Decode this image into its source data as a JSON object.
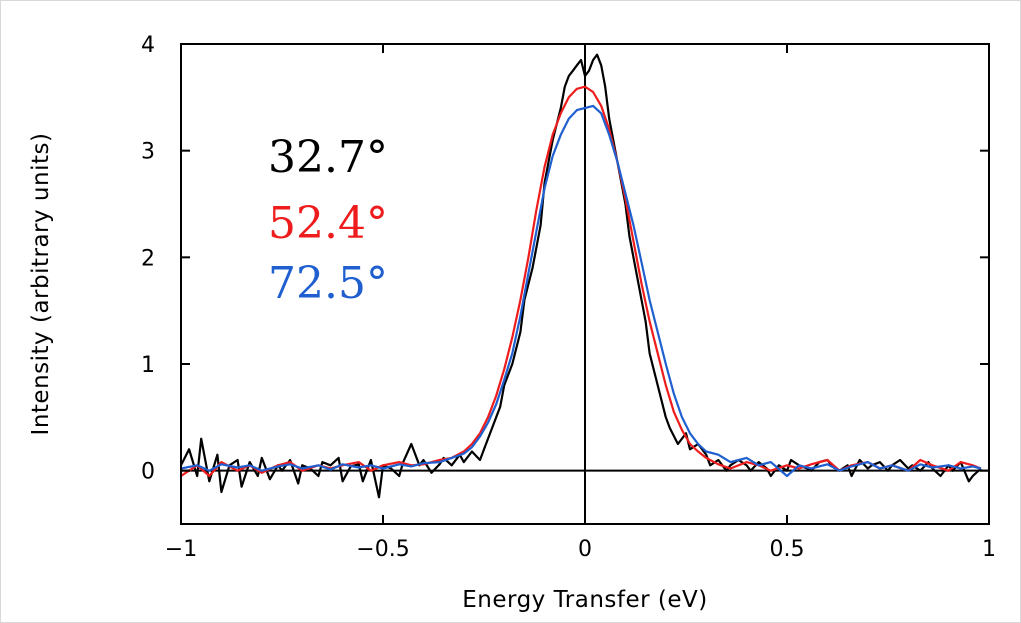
{
  "chart_data": {
    "type": "line",
    "xlabel": "Energy Transfer (eV)",
    "ylabel": "Intensity (arbitrary units)",
    "xlim": [
      -1,
      1
    ],
    "ylim": [
      -0.5,
      4
    ],
    "xticks": [
      -1,
      -0.5,
      0,
      0.5,
      1
    ],
    "xtick_labels": [
      "−1",
      "−0.5",
      "0",
      "0.5",
      "1"
    ],
    "yticks": [
      0,
      1,
      2,
      3,
      4
    ],
    "ytick_labels": [
      "0",
      "1",
      "2",
      "3",
      "4"
    ],
    "grid": false,
    "reference_lines": {
      "y": 0,
      "x": 0
    },
    "legend_placement": "upper-left",
    "series": [
      {
        "name": "32.7°",
        "color": "#000000",
        "x": [
          -1,
          -0.98,
          -0.96,
          -0.95,
          -0.93,
          -0.91,
          -0.9,
          -0.88,
          -0.86,
          -0.85,
          -0.83,
          -0.81,
          -0.8,
          -0.78,
          -0.76,
          -0.75,
          -0.73,
          -0.71,
          -0.7,
          -0.68,
          -0.66,
          -0.65,
          -0.63,
          -0.61,
          -0.6,
          -0.58,
          -0.56,
          -0.55,
          -0.53,
          -0.51,
          -0.5,
          -0.48,
          -0.46,
          -0.45,
          -0.43,
          -0.41,
          -0.4,
          -0.38,
          -0.36,
          -0.35,
          -0.33,
          -0.31,
          -0.3,
          -0.28,
          -0.26,
          -0.25,
          -0.23,
          -0.21,
          -0.2,
          -0.18,
          -0.16,
          -0.15,
          -0.13,
          -0.11,
          -0.1,
          -0.08,
          -0.06,
          -0.05,
          -0.04,
          -0.03,
          -0.02,
          -0.01,
          0,
          0.01,
          0.02,
          0.03,
          0.04,
          0.05,
          0.06,
          0.08,
          0.1,
          0.11,
          0.13,
          0.15,
          0.16,
          0.18,
          0.2,
          0.21,
          0.23,
          0.25,
          0.26,
          0.28,
          0.3,
          0.31,
          0.33,
          0.35,
          0.36,
          0.38,
          0.4,
          0.41,
          0.43,
          0.45,
          0.46,
          0.48,
          0.5,
          0.51,
          0.53,
          0.55,
          0.56,
          0.58,
          0.6,
          0.61,
          0.63,
          0.65,
          0.66,
          0.68,
          0.7,
          0.71,
          0.73,
          0.75,
          0.76,
          0.78,
          0.8,
          0.81,
          0.83,
          0.85,
          0.86,
          0.88,
          0.9,
          0.91,
          0.93,
          0.95,
          0.96,
          0.98
        ],
        "y": [
          0.05,
          0.2,
          -0.05,
          0.3,
          -0.1,
          0.15,
          -0.2,
          0.05,
          0.1,
          -0.15,
          0.08,
          -0.05,
          0.12,
          -0.08,
          0.05,
          0.0,
          0.1,
          -0.12,
          0.05,
          0.02,
          -0.05,
          0.08,
          0.05,
          0.12,
          -0.1,
          0.04,
          0.06,
          -0.1,
          0.1,
          -0.25,
          0.05,
          0.02,
          -0.05,
          0.08,
          0.25,
          0.05,
          0.1,
          -0.02,
          0.06,
          0.12,
          0.05,
          0.15,
          0.08,
          0.18,
          0.1,
          0.2,
          0.4,
          0.6,
          0.8,
          1.0,
          1.3,
          1.6,
          1.9,
          2.3,
          2.7,
          3.1,
          3.4,
          3.6,
          3.7,
          3.75,
          3.8,
          3.85,
          3.7,
          3.75,
          3.85,
          3.9,
          3.8,
          3.6,
          3.3,
          2.9,
          2.5,
          2.2,
          1.8,
          1.4,
          1.1,
          0.8,
          0.5,
          0.4,
          0.25,
          0.35,
          0.2,
          0.25,
          0.15,
          0.05,
          0.1,
          0.0,
          0.05,
          0.1,
          0.05,
          0.0,
          0.08,
          0.02,
          -0.05,
          0.05,
          0.0,
          0.1,
          0.05,
          0.02,
          0.0,
          0.08,
          0.1,
          0.05,
          0.0,
          0.05,
          -0.05,
          0.1,
          0.02,
          0.05,
          0.08,
          0.0,
          0.05,
          0.1,
          0.02,
          0.05,
          0.0,
          0.08,
          0.02,
          -0.05,
          0.05,
          0.0,
          0.08,
          -0.1,
          -0.05,
          0.02
        ]
      },
      {
        "name": "52.4°",
        "color": "#ee1c1c",
        "x": [
          -1,
          -0.96,
          -0.93,
          -0.9,
          -0.86,
          -0.83,
          -0.8,
          -0.76,
          -0.73,
          -0.7,
          -0.66,
          -0.63,
          -0.6,
          -0.56,
          -0.53,
          -0.5,
          -0.46,
          -0.43,
          -0.4,
          -0.36,
          -0.33,
          -0.3,
          -0.28,
          -0.26,
          -0.24,
          -0.22,
          -0.2,
          -0.18,
          -0.16,
          -0.14,
          -0.12,
          -0.1,
          -0.08,
          -0.06,
          -0.04,
          -0.02,
          0,
          0.02,
          0.04,
          0.06,
          0.08,
          0.1,
          0.12,
          0.14,
          0.16,
          0.18,
          0.2,
          0.22,
          0.24,
          0.26,
          0.28,
          0.3,
          0.33,
          0.36,
          0.4,
          0.43,
          0.46,
          0.5,
          0.53,
          0.56,
          0.6,
          0.63,
          0.66,
          0.7,
          0.73,
          0.76,
          0.8,
          0.83,
          0.86,
          0.9,
          0.93,
          0.96,
          0.98
        ],
        "y": [
          -0.05,
          0.05,
          -0.05,
          0.08,
          0.0,
          0.05,
          -0.02,
          0.05,
          0.08,
          0.0,
          0.05,
          0.02,
          0.05,
          0.08,
          0.0,
          0.05,
          0.08,
          0.05,
          0.06,
          0.1,
          0.12,
          0.18,
          0.25,
          0.35,
          0.5,
          0.7,
          0.95,
          1.25,
          1.6,
          2.0,
          2.45,
          2.85,
          3.15,
          3.35,
          3.5,
          3.58,
          3.6,
          3.55,
          3.42,
          3.2,
          2.9,
          2.55,
          2.15,
          1.75,
          1.4,
          1.1,
          0.8,
          0.55,
          0.38,
          0.25,
          0.18,
          0.12,
          0.06,
          0.02,
          0.08,
          0.05,
          0.0,
          0.05,
          0.02,
          0.06,
          0.1,
          0.0,
          0.05,
          0.08,
          0.02,
          0.05,
          0.0,
          0.1,
          0.05,
          0.0,
          0.08,
          0.05,
          0.02
        ]
      },
      {
        "name": "72.5°",
        "color": "#1f5fd0",
        "x": [
          -1,
          -0.96,
          -0.93,
          -0.9,
          -0.86,
          -0.83,
          -0.8,
          -0.76,
          -0.73,
          -0.7,
          -0.66,
          -0.63,
          -0.6,
          -0.56,
          -0.53,
          -0.5,
          -0.46,
          -0.43,
          -0.4,
          -0.36,
          -0.33,
          -0.3,
          -0.28,
          -0.26,
          -0.24,
          -0.22,
          -0.2,
          -0.18,
          -0.16,
          -0.14,
          -0.12,
          -0.1,
          -0.08,
          -0.06,
          -0.04,
          -0.02,
          0,
          0.02,
          0.04,
          0.06,
          0.08,
          0.1,
          0.12,
          0.14,
          0.16,
          0.18,
          0.2,
          0.22,
          0.24,
          0.26,
          0.28,
          0.3,
          0.33,
          0.36,
          0.4,
          0.43,
          0.46,
          0.5,
          0.53,
          0.56,
          0.6,
          0.63,
          0.66,
          0.7,
          0.73,
          0.76,
          0.8,
          0.83,
          0.86,
          0.9,
          0.93,
          0.96,
          0.98
        ],
        "y": [
          0.02,
          0.05,
          0.0,
          0.06,
          0.03,
          0.05,
          0.0,
          0.04,
          0.06,
          0.02,
          0.05,
          0.01,
          0.06,
          0.03,
          0.05,
          0.02,
          0.06,
          0.04,
          0.07,
          0.08,
          0.12,
          0.16,
          0.22,
          0.32,
          0.45,
          0.62,
          0.85,
          1.1,
          1.45,
          1.85,
          2.25,
          2.65,
          2.95,
          3.15,
          3.3,
          3.38,
          3.4,
          3.42,
          3.35,
          3.15,
          2.9,
          2.6,
          2.3,
          1.95,
          1.6,
          1.3,
          1.0,
          0.72,
          0.5,
          0.35,
          0.25,
          0.18,
          0.15,
          0.08,
          0.12,
          0.05,
          0.08,
          -0.05,
          0.05,
          0.02,
          0.06,
          0.0,
          0.04,
          0.08,
          0.02,
          0.05,
          0.0,
          0.06,
          0.03,
          0.05,
          0.02,
          0.04,
          0.02
        ]
      }
    ]
  }
}
